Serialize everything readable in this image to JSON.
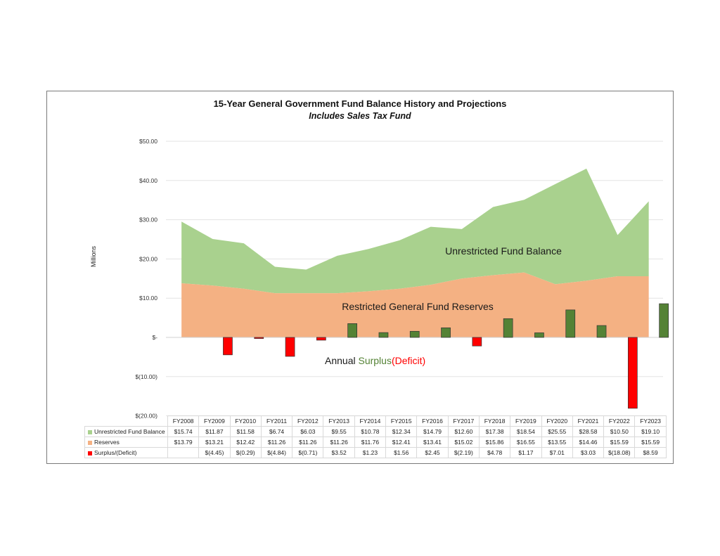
{
  "chart_data": {
    "type": "area",
    "title": "15-Year General Government Fund Balance History and Projections",
    "subtitle": "Includes Sales Tax Fund",
    "ylabel": "Millions",
    "xlabel": "",
    "ylim": [
      -20,
      50
    ],
    "yticks": [
      50,
      40,
      30,
      20,
      10,
      0,
      -10,
      -20
    ],
    "ytick_labels": [
      "$50.00",
      "$40.00",
      "$30.00",
      "$20.00",
      "$10.00",
      "$-",
      "$(10.00)",
      "$(20.00)"
    ],
    "grid": true,
    "categories": [
      "FY2008",
      "FY2009",
      "FY2010",
      "FY2011",
      "FY2012",
      "FY2013",
      "FY2014",
      "FY2015",
      "FY2016",
      "FY2017",
      "FY2018",
      "FY2019",
      "FY2020",
      "FY2021",
      "FY2022",
      "FY2023"
    ],
    "series": [
      {
        "name": "Unrestricted Fund Balance",
        "kind": "stacked-area",
        "color": "#a9d18e",
        "values": [
          15.74,
          11.87,
          11.58,
          6.74,
          6.03,
          9.55,
          10.78,
          12.34,
          14.79,
          12.6,
          17.38,
          18.54,
          25.55,
          28.58,
          10.5,
          19.1
        ],
        "labels": [
          "$15.74",
          "$11.87",
          "$11.58",
          "$6.74",
          "$6.03",
          "$9.55",
          "$10.78",
          "$12.34",
          "$14.79",
          "$12.60",
          "$17.38",
          "$18.54",
          "$25.55",
          "$28.58",
          "$10.50",
          "$19.10"
        ]
      },
      {
        "name": "Reserves",
        "kind": "stacked-area",
        "color": "#f4b183",
        "values": [
          13.79,
          13.21,
          12.42,
          11.26,
          11.26,
          11.26,
          11.76,
          12.41,
          13.41,
          15.02,
          15.86,
          16.55,
          13.55,
          14.46,
          15.59,
          15.59
        ],
        "labels": [
          "$13.79",
          "$13.21",
          "$12.42",
          "$11.26",
          "$11.26",
          "$11.26",
          "$11.76",
          "$12.41",
          "$13.41",
          "$15.02",
          "$15.86",
          "$16.55",
          "$13.55",
          "$14.46",
          "$15.59",
          "$15.59"
        ]
      },
      {
        "name": "Surplus/(Deficit)",
        "kind": "bar",
        "color_pos": "#548235",
        "color_neg": "#ff0000",
        "values": [
          null,
          -4.45,
          -0.29,
          -4.84,
          -0.71,
          3.52,
          1.23,
          1.56,
          2.45,
          -2.19,
          4.78,
          1.17,
          7.01,
          3.03,
          -18.08,
          8.59
        ],
        "labels": [
          "",
          "$(4.45)",
          "$(0.29)",
          "$(4.84)",
          "$(0.71)",
          "$3.52",
          "$1.23",
          "$1.56",
          "$2.45",
          "$(2.19)",
          "$4.78",
          "$1.17",
          "$7.01",
          "$3.03",
          "$(18.08)",
          "$8.59"
        ]
      }
    ],
    "annotations": {
      "unrestricted": "Unrestricted Fund Balance",
      "restricted": "Restricted General Fund Reserves",
      "annual": "Annual ",
      "surplus": "Surplus",
      "deficit": "(Deficit)"
    },
    "legend": "data-table-bottom"
  }
}
